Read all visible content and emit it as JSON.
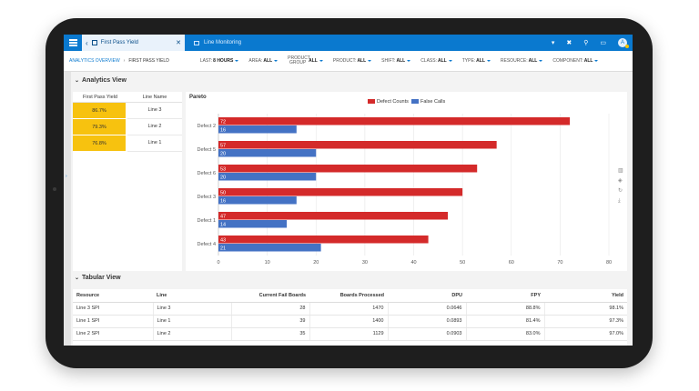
{
  "topbar": {
    "active_tab": "First Pass Yield",
    "inactive_tab": "Line Monitoring",
    "avatar_initial": "A",
    "colors": {
      "bar": "#0a79cf",
      "active_tab_bg": "#e9f2fb"
    }
  },
  "breadcrumb": {
    "link": "ANALYTICS OVERVIEW",
    "current": "FIRST PASS YIELD"
  },
  "filters": [
    {
      "label": "LAST:",
      "value": "8 HOURS"
    },
    {
      "label": "AREA:",
      "value": "ALL"
    },
    {
      "label": "PRODUCT GROUP",
      "value": "ALL"
    },
    {
      "label": "PRODUCT:",
      "value": "ALL"
    },
    {
      "label": "SHIFT:",
      "value": "ALL"
    },
    {
      "label": "CLASS:",
      "value": "ALL"
    },
    {
      "label": "TYPE:",
      "value": "ALL"
    },
    {
      "label": "RESOURCE:",
      "value": "ALL"
    },
    {
      "label": "COMPONENT:",
      "value": "ALL"
    }
  ],
  "analytics_view": {
    "title": "Analytics View",
    "fpy_table": {
      "headers": [
        "First Pass Yield",
        "Line Name"
      ],
      "rows": [
        {
          "fpy": "86.7%",
          "line": "Line 3"
        },
        {
          "fpy": "79.3%",
          "line": "Line 2"
        },
        {
          "fpy": "76.8%",
          "line": "Line 1"
        }
      ],
      "highlight_color": "#f7c20f"
    },
    "pareto_title": "Pareto"
  },
  "chart_data": {
    "type": "bar",
    "orientation": "horizontal",
    "title": "Pareto",
    "categories": [
      "Defect 2",
      "Defect 5",
      "Defect 6",
      "Defect 3",
      "Defect 1",
      "Defect 4"
    ],
    "series": [
      {
        "name": "Defect Counts",
        "color": "#d42a2a",
        "values": [
          72,
          57,
          53,
          50,
          47,
          43
        ]
      },
      {
        "name": "False Calls",
        "color": "#4472c4",
        "values": [
          16,
          20,
          20,
          16,
          14,
          21
        ]
      }
    ],
    "xlim": [
      0,
      80
    ],
    "xticks": [
      0,
      10,
      20,
      30,
      40,
      50,
      60,
      70,
      80
    ],
    "legend": "top-center",
    "grid": true
  },
  "tabular_view": {
    "title": "Tabular View",
    "headers": [
      "Resource",
      "Line",
      "Current Fail Boards",
      "Boards Processed",
      "DPU",
      "FPY",
      "Yield"
    ],
    "rows": [
      [
        "Line 3 SPI",
        "Line 3",
        "28",
        "1470",
        "0.0646",
        "88.8%",
        "98.1%"
      ],
      [
        "Line 1 SPI",
        "Line 1",
        "39",
        "1400",
        "0.0893",
        "81.4%",
        "97.3%"
      ],
      [
        "Line 2 SPI",
        "Line 2",
        "35",
        "1129",
        "0.0903",
        "83.0%",
        "97.0%"
      ]
    ]
  }
}
